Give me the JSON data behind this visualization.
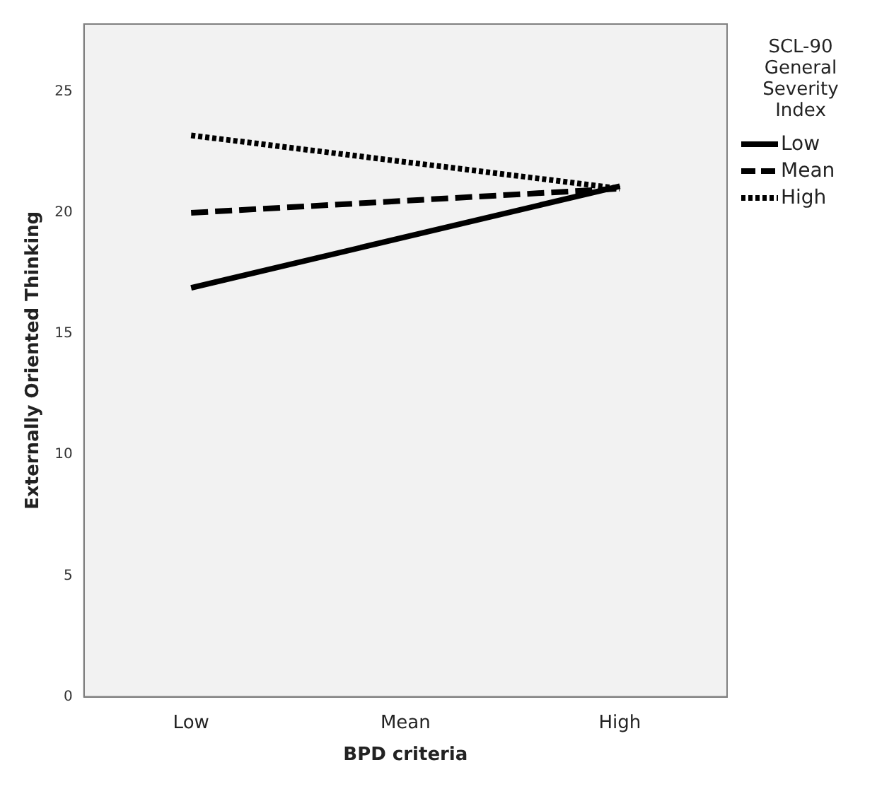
{
  "chart_data": {
    "type": "line",
    "xlabel": "BPD criteria",
    "ylabel": "Externally Oriented Thinking",
    "legend_title": "SCL-90 General Severity Index",
    "categories": [
      "Low",
      "Mean",
      "High"
    ],
    "series": [
      {
        "name": "Low",
        "color": "#000000",
        "line_style": "solid",
        "values": [
          16.9,
          null,
          21.1
        ]
      },
      {
        "name": "Mean",
        "color": "#000000",
        "line_style": "dashed",
        "values": [
          20.0,
          null,
          21.0
        ]
      },
      {
        "name": "High",
        "color": "#000000",
        "line_style": "dotted",
        "values": [
          23.2,
          null,
          21.0
        ]
      }
    ],
    "ylim": [
      0,
      27.8
    ],
    "yticks": [
      0,
      5,
      10,
      15,
      20,
      25
    ],
    "grid": false,
    "legend": "top right",
    "marker": "none"
  }
}
